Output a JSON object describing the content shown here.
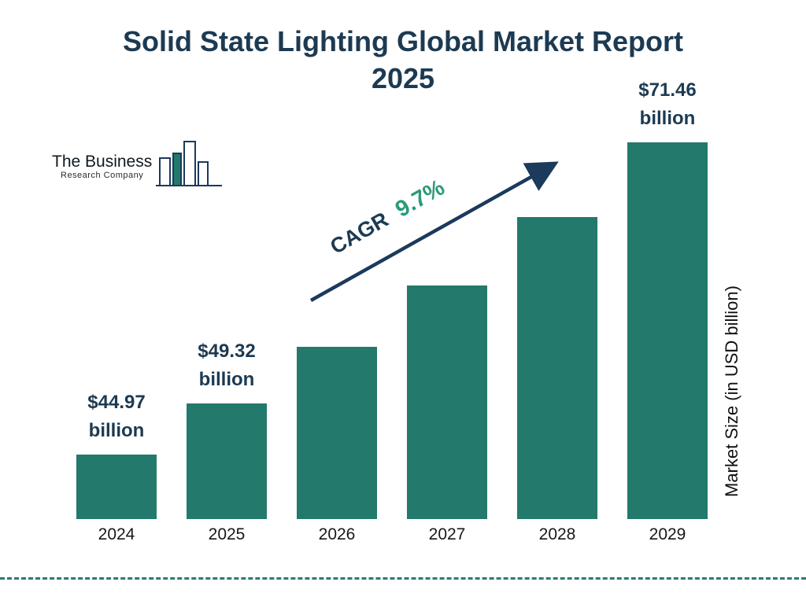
{
  "page": {
    "title_line1": "Solid State Lighting Global Market Report",
    "title_line2": "2025"
  },
  "logo": {
    "name_line1": "The Business",
    "name_line2": "Research Company"
  },
  "annotation": {
    "cagr_label": "CAGR",
    "cagr_value": "9.7%"
  },
  "axis": {
    "y_label": "Market Size (in USD billion)"
  },
  "chart_data": {
    "type": "bar",
    "title": "Solid State Lighting Global Market Report 2025",
    "categories": [
      "2024",
      "2025",
      "2026",
      "2027",
      "2028",
      "2029"
    ],
    "values": [
      44.97,
      49.32,
      54.1,
      59.33,
      65.08,
      71.46
    ],
    "value_labels": [
      [
        "$44.97",
        "billion"
      ],
      [
        "$49.32",
        "billion"
      ],
      null,
      null,
      null,
      [
        "$71.46",
        "billion"
      ]
    ],
    "unit": "USD billion",
    "ylabel": "Market Size (in USD billion)",
    "cagr": "9.7%",
    "legend": "none",
    "grid": "off",
    "bar_color": "#23796b",
    "annotation_color": "#2a9a7a",
    "text_color": "#1c3a52"
  }
}
